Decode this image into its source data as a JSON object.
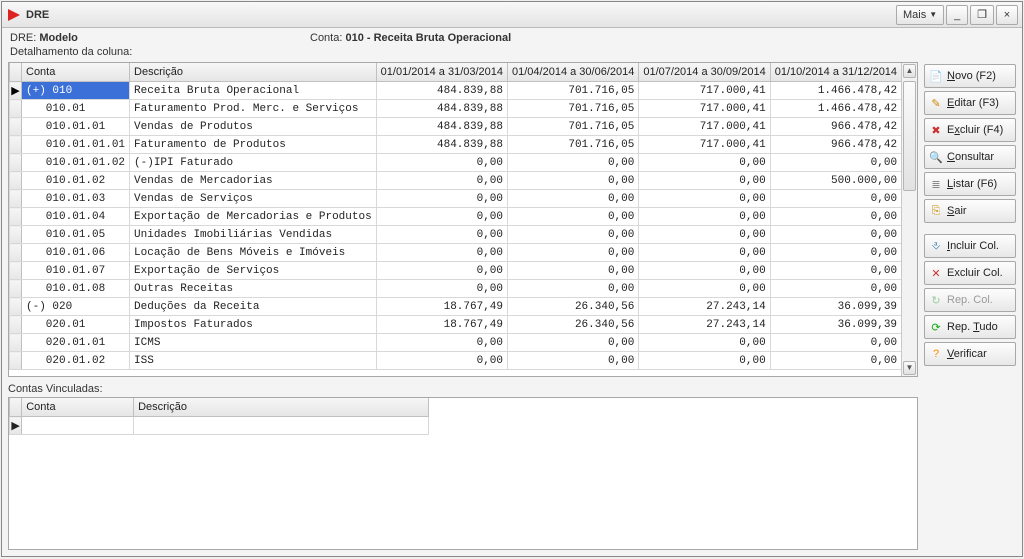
{
  "window": {
    "title": "DRE",
    "mais_label": "Mais",
    "minimize": "_",
    "restore": "❐",
    "close": "×"
  },
  "header": {
    "dre_label": "DRE:",
    "dre_value": "Modelo",
    "conta_label": "Conta:",
    "conta_value": "010 - Receita Bruta Operacional",
    "detail_label": "Detalhamento da coluna:"
  },
  "grid": {
    "columns": {
      "conta": "Conta",
      "descricao": "Descrição",
      "q1": "01/01/2014 a 31/03/2014",
      "q2": "01/04/2014 a 30/06/2014",
      "q3": "01/07/2014 a 30/09/2014",
      "q4": "01/10/2014 a 31/12/2014"
    },
    "rows": [
      {
        "ind": "▶",
        "conta": "(+) 010",
        "desc": "Receita Bruta Operacional",
        "q1": "484.839,88",
        "q2": "701.716,05",
        "q3": "717.000,41",
        "q4": "1.466.478,42",
        "sel": true
      },
      {
        "ind": "",
        "conta": "   010.01",
        "desc": "Faturamento Prod. Merc. e Serviços",
        "q1": "484.839,88",
        "q2": "701.716,05",
        "q3": "717.000,41",
        "q4": "1.466.478,42"
      },
      {
        "ind": "",
        "conta": "   010.01.01",
        "desc": "Vendas de Produtos",
        "q1": "484.839,88",
        "q2": "701.716,05",
        "q3": "717.000,41",
        "q4": "966.478,42"
      },
      {
        "ind": "",
        "conta": "   010.01.01.01",
        "desc": "Faturamento de Produtos",
        "q1": "484.839,88",
        "q2": "701.716,05",
        "q3": "717.000,41",
        "q4": "966.478,42"
      },
      {
        "ind": "",
        "conta": "   010.01.01.02",
        "desc": "(-)IPI Faturado",
        "q1": "0,00",
        "q2": "0,00",
        "q3": "0,00",
        "q4": "0,00"
      },
      {
        "ind": "",
        "conta": "   010.01.02",
        "desc": "Vendas de Mercadorias",
        "q1": "0,00",
        "q2": "0,00",
        "q3": "0,00",
        "q4": "500.000,00"
      },
      {
        "ind": "",
        "conta": "   010.01.03",
        "desc": "Vendas de Serviços",
        "q1": "0,00",
        "q2": "0,00",
        "q3": "0,00",
        "q4": "0,00"
      },
      {
        "ind": "",
        "conta": "   010.01.04",
        "desc": "Exportação de Mercadorias e Produtos",
        "q1": "0,00",
        "q2": "0,00",
        "q3": "0,00",
        "q4": "0,00"
      },
      {
        "ind": "",
        "conta": "   010.01.05",
        "desc": "Unidades Imobiliárias Vendidas",
        "q1": "0,00",
        "q2": "0,00",
        "q3": "0,00",
        "q4": "0,00"
      },
      {
        "ind": "",
        "conta": "   010.01.06",
        "desc": "Locação de Bens Móveis e Imóveis",
        "q1": "0,00",
        "q2": "0,00",
        "q3": "0,00",
        "q4": "0,00"
      },
      {
        "ind": "",
        "conta": "   010.01.07",
        "desc": "Exportação de Serviços",
        "q1": "0,00",
        "q2": "0,00",
        "q3": "0,00",
        "q4": "0,00"
      },
      {
        "ind": "",
        "conta": "   010.01.08",
        "desc": "Outras Receitas",
        "q1": "0,00",
        "q2": "0,00",
        "q3": "0,00",
        "q4": "0,00"
      },
      {
        "ind": "",
        "conta": "(-) 020",
        "desc": "Deduções da Receita",
        "q1": "18.767,49",
        "q2": "26.340,56",
        "q3": "27.243,14",
        "q4": "36.099,39"
      },
      {
        "ind": "",
        "conta": "   020.01",
        "desc": "Impostos Faturados",
        "q1": "18.767,49",
        "q2": "26.340,56",
        "q3": "27.243,14",
        "q4": "36.099,39"
      },
      {
        "ind": "",
        "conta": "   020.01.01",
        "desc": "ICMS",
        "q1": "0,00",
        "q2": "0,00",
        "q3": "0,00",
        "q4": "0,00"
      },
      {
        "ind": "",
        "conta": "   020.01.02",
        "desc": "ISS",
        "q1": "0,00",
        "q2": "0,00",
        "q3": "0,00",
        "q4": "0,00"
      }
    ]
  },
  "linked": {
    "label": "Contas Vinculadas:",
    "columns": {
      "conta": "Conta",
      "descricao": "Descrição"
    }
  },
  "buttons": {
    "novo": {
      "label": "Novo  (F2)",
      "u": "N",
      "icon": "📄",
      "color": "#2a6"
    },
    "editar": {
      "label": "Editar  (F3)",
      "u": "E",
      "icon": "✎",
      "color": "#c80"
    },
    "excluir": {
      "label": "Excluir (F4)",
      "u": "x",
      "icon": "✖",
      "color": "#c33"
    },
    "consultar": {
      "label": "Consultar",
      "u": "C",
      "icon": "🔍",
      "color": "#48a"
    },
    "listar": {
      "label": "Listar  (F6)",
      "u": "L",
      "icon": "≣",
      "color": "#888"
    },
    "sair": {
      "label": "Sair",
      "u": "S",
      "icon": "⎘",
      "color": "#c80"
    },
    "incluir_col": {
      "label": "Incluir Col.",
      "u": "I",
      "icon": "⎀",
      "color": "#27a"
    },
    "excluir_col": {
      "label": "Excluir Col.",
      "u": "",
      "icon": "✕",
      "color": "#c33"
    },
    "rep_col": {
      "label": "Rep. Col.",
      "u": "",
      "icon": "↻",
      "color": "#9c9",
      "disabled": true
    },
    "rep_tudo": {
      "label": "Rep. Tudo",
      "u": "T",
      "icon": "⟳",
      "color": "#1a1"
    },
    "verificar": {
      "label": "Verificar",
      "u": "V",
      "icon": "?",
      "color": "#f80"
    }
  }
}
